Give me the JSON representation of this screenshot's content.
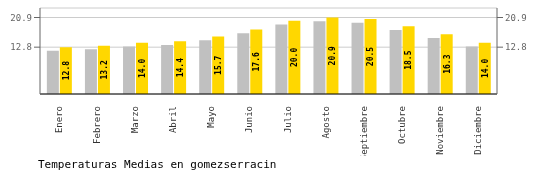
{
  "chart_data": {
    "type": "bar",
    "title": "Temperaturas Medias en gomezserracin",
    "categories": [
      "Enero",
      "Febrero",
      "Marzo",
      "Abril",
      "Mayo",
      "Junio",
      "Julio",
      "Agosto",
      "Septiembre",
      "Octubre",
      "Noviembre",
      "Diciembre"
    ],
    "series": [
      {
        "color": "#C0C0C0",
        "values": [
          11.8,
          12.2,
          13.0,
          13.4,
          14.7,
          16.6,
          19.0,
          19.9,
          19.5,
          17.5,
          15.3,
          13.0
        ]
      },
      {
        "color": "#FFD700",
        "values": [
          12.8,
          13.2,
          14.0,
          14.4,
          15.7,
          17.6,
          20.0,
          20.9,
          20.5,
          18.5,
          16.3,
          14.0
        ],
        "data_labels": true,
        "value_labels": [
          "12.8",
          "13.2",
          "14.0",
          "14.4",
          "15.7",
          "17.6",
          "20.0",
          "20.9",
          "20.5",
          "18.5",
          "16.3",
          "14.0"
        ]
      }
    ],
    "ylim": [
      0,
      23.5
    ],
    "yticks": [
      12.8,
      20.9
    ],
    "y2lim": [
      0,
      23.5
    ],
    "y2ticks": [
      12.8,
      20.9
    ],
    "grid": true
  }
}
